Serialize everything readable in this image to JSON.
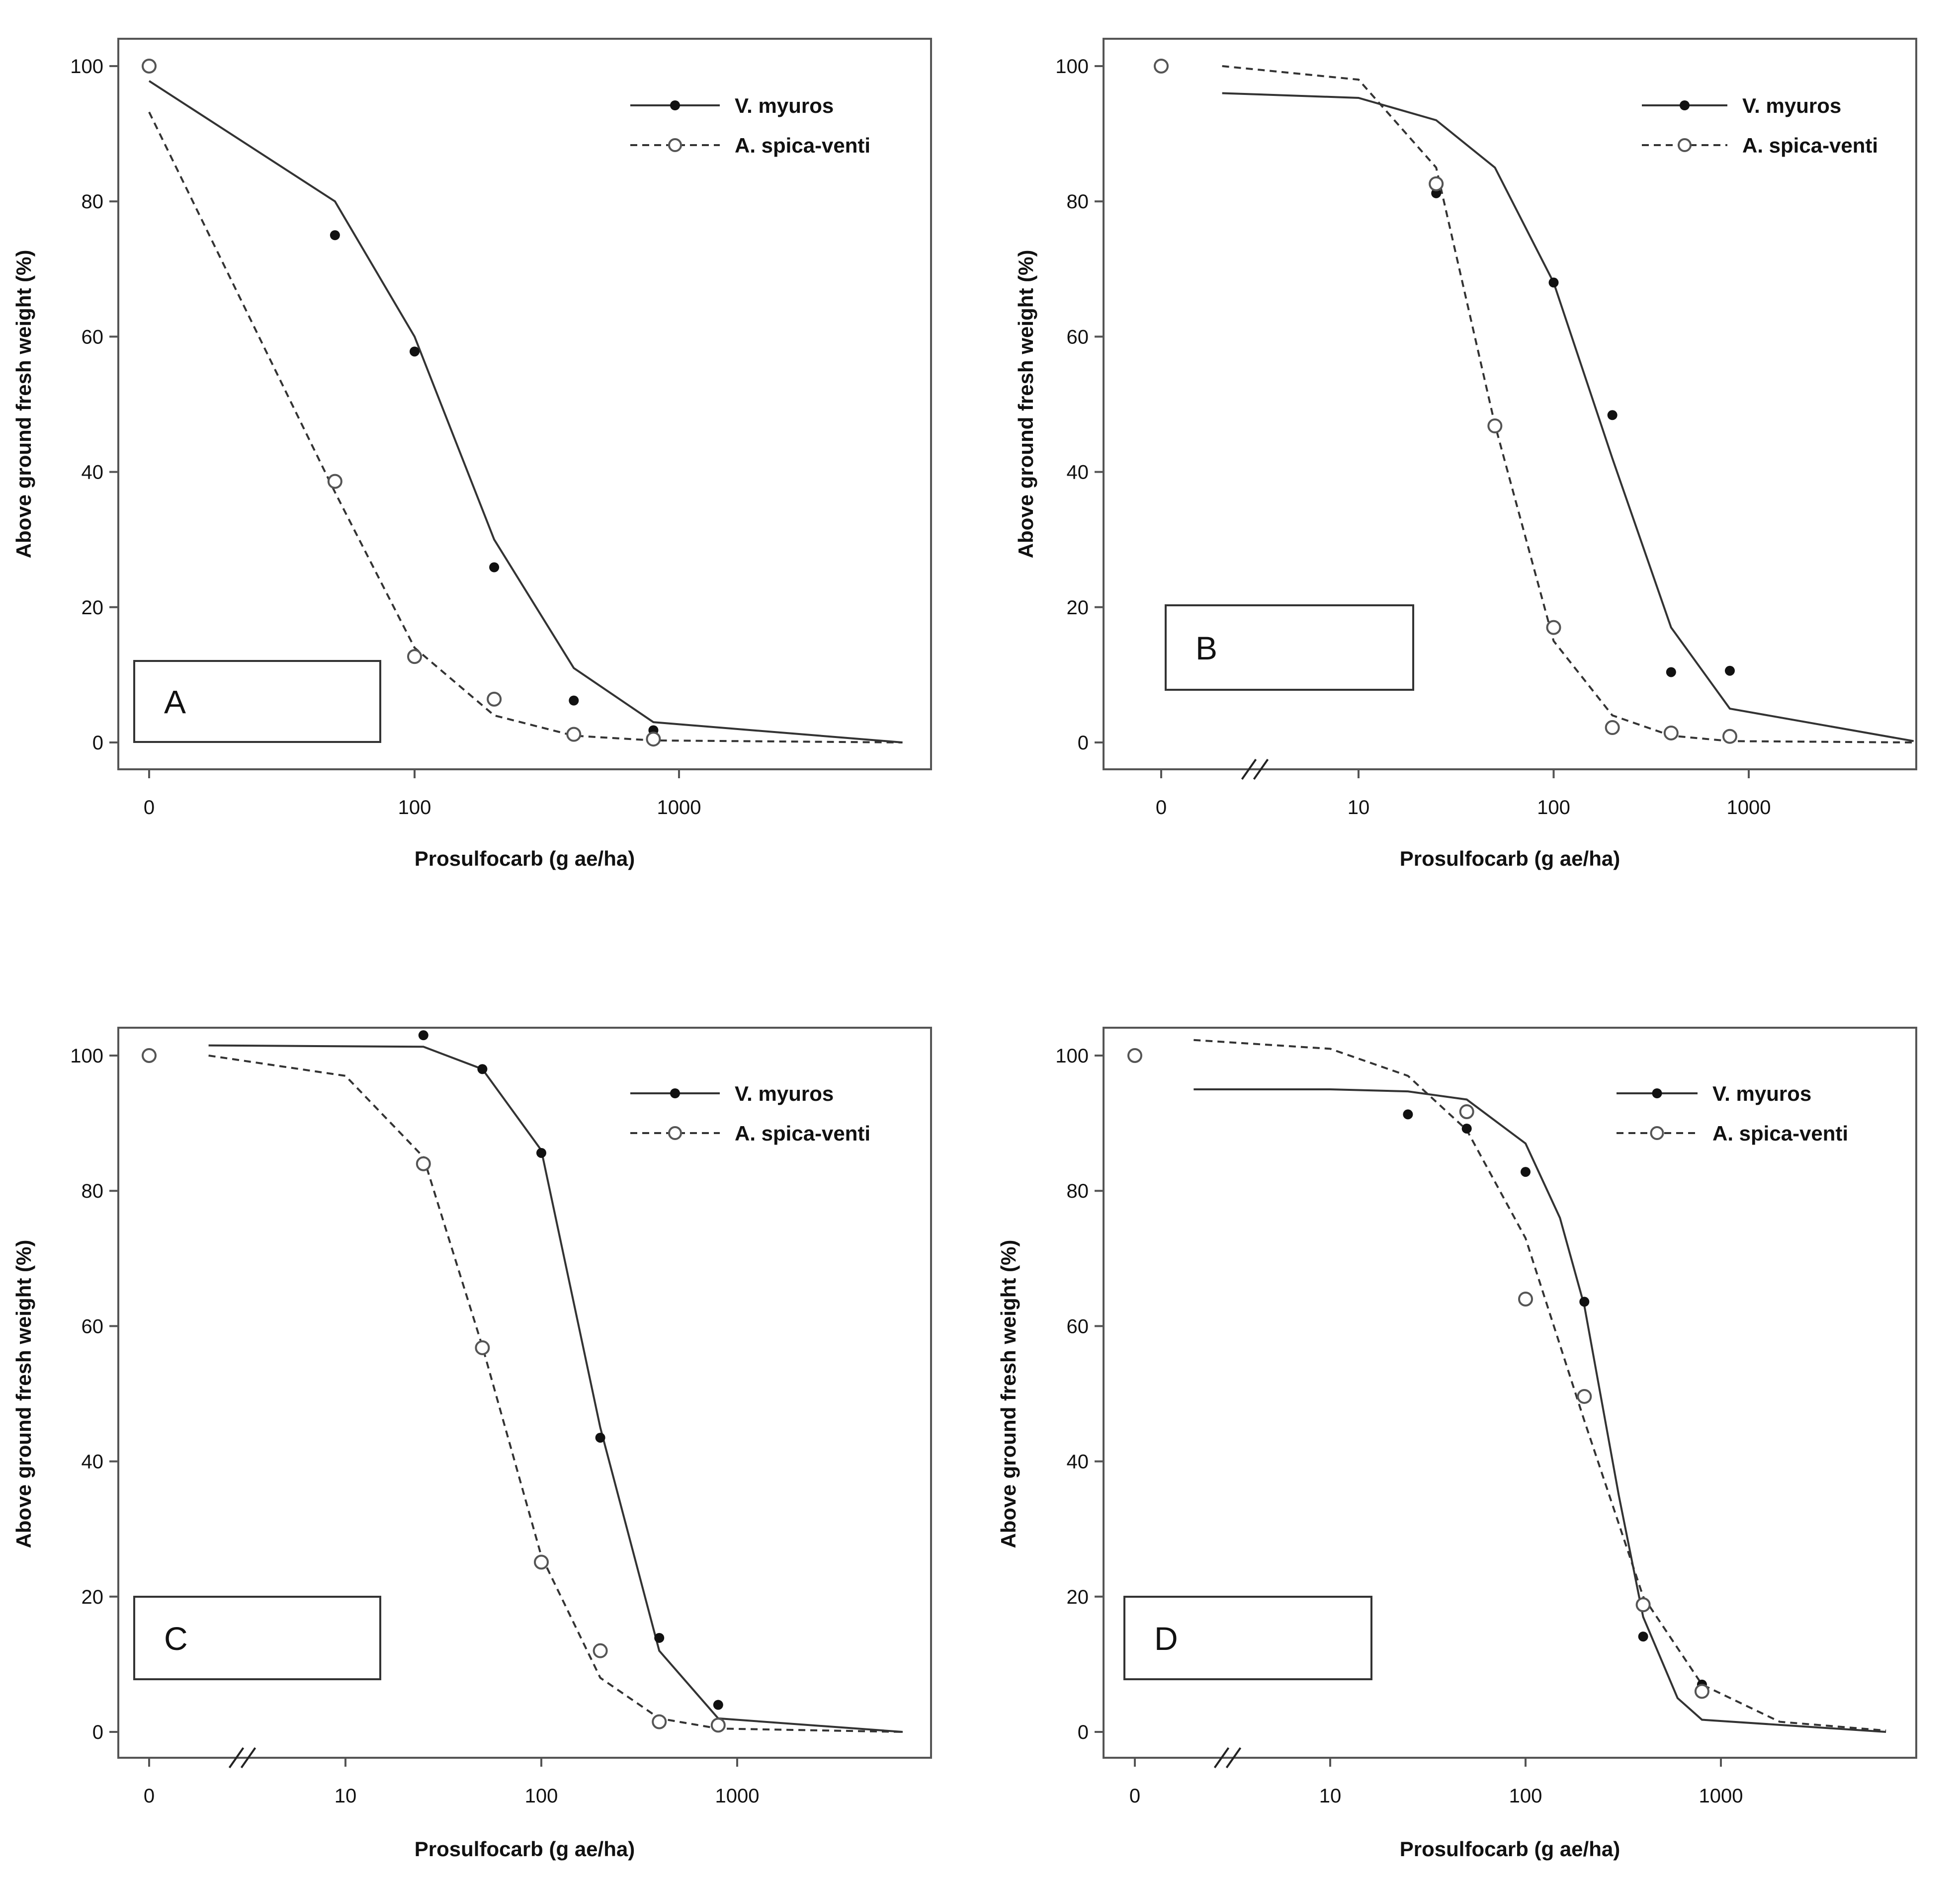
{
  "figure": {
    "colors": {
      "line": "#333333",
      "frame": "#555555",
      "point_fill": "#111111",
      "open_point": "#555555",
      "background": "#ffffff"
    }
  },
  "chart_data": [
    {
      "type": "line",
      "panel": "A",
      "xlabel": "Prosulfocarb (g ae/ha)",
      "ylabel": "Above ground fresh weight (%)",
      "xscale": "log",
      "xticks": [
        "0",
        "100",
        "1000"
      ],
      "yticks": [
        "0",
        "20",
        "40",
        "60",
        "80",
        "100"
      ],
      "ylim": [
        0,
        100
      ],
      "legend_position": "top-right",
      "series": [
        {
          "name": "V. myuros",
          "marker": "filled-circle",
          "line": "solid",
          "points": [
            {
              "x": 0,
              "y": 100
            },
            {
              "x": 50,
              "y": 75
            },
            {
              "x": 100,
              "y": 57.8
            },
            {
              "x": 200,
              "y": 25.9
            },
            {
              "x": 400,
              "y": 6.2
            },
            {
              "x": 800,
              "y": 1.8
            }
          ],
          "curve": [
            {
              "x": 0,
              "y": 97.8
            },
            {
              "x": 50,
              "y": 80
            },
            {
              "x": 100,
              "y": 60
            },
            {
              "x": 200,
              "y": 30
            },
            {
              "x": 400,
              "y": 11
            },
            {
              "x": 800,
              "y": 3
            },
            {
              "x": 7000,
              "y": 0
            }
          ]
        },
        {
          "name": "A. spica-venti",
          "marker": "open-circle",
          "line": "dashed",
          "points": [
            {
              "x": 0,
              "y": 100
            },
            {
              "x": 50,
              "y": 38.6
            },
            {
              "x": 100,
              "y": 12.7
            },
            {
              "x": 200,
              "y": 6.4
            },
            {
              "x": 400,
              "y": 1.2
            },
            {
              "x": 800,
              "y": 0.5
            }
          ],
          "curve": [
            {
              "x": 0,
              "y": 93.2
            },
            {
              "x": 50,
              "y": 37
            },
            {
              "x": 100,
              "y": 14
            },
            {
              "x": 200,
              "y": 4
            },
            {
              "x": 400,
              "y": 1
            },
            {
              "x": 800,
              "y": 0.3
            },
            {
              "x": 7000,
              "y": 0
            }
          ]
        }
      ]
    },
    {
      "type": "line",
      "panel": "B",
      "xlabel": "Prosulfocarb (g ae/ha)",
      "ylabel": "Above ground fresh weight (%)",
      "xscale": "log",
      "axis_break": true,
      "xticks": [
        "0",
        "10",
        "100",
        "1000"
      ],
      "yticks": [
        "0",
        "20",
        "40",
        "60",
        "80",
        "100"
      ],
      "ylim": [
        0,
        100
      ],
      "legend_position": "top-right",
      "series": [
        {
          "name": "V. myuros",
          "marker": "filled-circle",
          "line": "solid",
          "points": [
            {
              "x": 0,
              "y": 100
            },
            {
              "x": 25,
              "y": 81.2
            },
            {
              "x": 100,
              "y": 68
            },
            {
              "x": 200,
              "y": 48.4
            },
            {
              "x": 400,
              "y": 10.4
            },
            {
              "x": 800,
              "y": 10.6
            }
          ],
          "curve": [
            {
              "x": 2,
              "y": 96
            },
            {
              "x": 10,
              "y": 95.3
            },
            {
              "x": 25,
              "y": 92
            },
            {
              "x": 50,
              "y": 85
            },
            {
              "x": 100,
              "y": 68
            },
            {
              "x": 200,
              "y": 42
            },
            {
              "x": 400,
              "y": 17
            },
            {
              "x": 800,
              "y": 5
            },
            {
              "x": 7000,
              "y": 0.2
            }
          ]
        },
        {
          "name": "A. spica-venti",
          "marker": "open-circle",
          "line": "dashed",
          "points": [
            {
              "x": 0,
              "y": 100
            },
            {
              "x": 25,
              "y": 82.6
            },
            {
              "x": 50,
              "y": 46.8
            },
            {
              "x": 100,
              "y": 17
            },
            {
              "x": 200,
              "y": 2.2
            },
            {
              "x": 400,
              "y": 1.4
            },
            {
              "x": 800,
              "y": 0.9
            }
          ],
          "curve": [
            {
              "x": 2,
              "y": 100
            },
            {
              "x": 10,
              "y": 98
            },
            {
              "x": 25,
              "y": 85
            },
            {
              "x": 50,
              "y": 47
            },
            {
              "x": 100,
              "y": 15
            },
            {
              "x": 200,
              "y": 4
            },
            {
              "x": 400,
              "y": 1
            },
            {
              "x": 800,
              "y": 0.2
            },
            {
              "x": 7000,
              "y": 0
            }
          ]
        }
      ]
    },
    {
      "type": "line",
      "panel": "C",
      "xlabel": "Prosulfocarb (g ae/ha)",
      "ylabel": "Above ground fresh weight (%)",
      "xscale": "log",
      "axis_break": true,
      "xticks": [
        "0",
        "10",
        "100",
        "1000"
      ],
      "yticks": [
        "0",
        "20",
        "40",
        "60",
        "80",
        "100"
      ],
      "ylim": [
        0,
        100
      ],
      "legend_position": "top-right",
      "series": [
        {
          "name": "V. myuros",
          "marker": "filled-circle",
          "line": "solid",
          "points": [
            {
              "x": 0,
              "y": 100
            },
            {
              "x": 25,
              "y": 103
            },
            {
              "x": 50,
              "y": 98
            },
            {
              "x": 100,
              "y": 85.6
            },
            {
              "x": 200,
              "y": 43.5
            },
            {
              "x": 400,
              "y": 13.9
            },
            {
              "x": 800,
              "y": 4
            }
          ],
          "curve": [
            {
              "x": 2,
              "y": 101.5
            },
            {
              "x": 25,
              "y": 101.3
            },
            {
              "x": 50,
              "y": 98
            },
            {
              "x": 100,
              "y": 86
            },
            {
              "x": 200,
              "y": 45
            },
            {
              "x": 400,
              "y": 12
            },
            {
              "x": 800,
              "y": 2
            },
            {
              "x": 7000,
              "y": 0
            }
          ]
        },
        {
          "name": "A. spica-venti",
          "marker": "open-circle",
          "line": "dashed",
          "points": [
            {
              "x": 0,
              "y": 100
            },
            {
              "x": 25,
              "y": 84
            },
            {
              "x": 50,
              "y": 56.8
            },
            {
              "x": 100,
              "y": 25.1
            },
            {
              "x": 200,
              "y": 12
            },
            {
              "x": 400,
              "y": 1.5
            },
            {
              "x": 800,
              "y": 1
            }
          ],
          "curve": [
            {
              "x": 2,
              "y": 100
            },
            {
              "x": 10,
              "y": 97
            },
            {
              "x": 25,
              "y": 85
            },
            {
              "x": 50,
              "y": 57
            },
            {
              "x": 100,
              "y": 26
            },
            {
              "x": 200,
              "y": 8
            },
            {
              "x": 400,
              "y": 2
            },
            {
              "x": 800,
              "y": 0.5
            },
            {
              "x": 7000,
              "y": 0
            }
          ]
        }
      ]
    },
    {
      "type": "line",
      "panel": "D",
      "xlabel": "Prosulfocarb (g ae/ha)",
      "ylabel": "Above ground fresh weight (%)",
      "xscale": "log",
      "axis_break": true,
      "xticks": [
        "0",
        "10",
        "100",
        "1000"
      ],
      "yticks": [
        "0",
        "20",
        "40",
        "60",
        "80",
        "100"
      ],
      "ylim": [
        0,
        100
      ],
      "legend_position": "top-right",
      "series": [
        {
          "name": "V. myuros",
          "marker": "filled-circle",
          "line": "solid",
          "points": [
            {
              "x": 0,
              "y": 100
            },
            {
              "x": 25,
              "y": 91.3
            },
            {
              "x": 50,
              "y": 89.2
            },
            {
              "x": 100,
              "y": 82.8
            },
            {
              "x": 200,
              "y": 63.6
            },
            {
              "x": 400,
              "y": 14.1
            },
            {
              "x": 800,
              "y": 7
            }
          ],
          "curve": [
            {
              "x": 2,
              "y": 95
            },
            {
              "x": 10,
              "y": 95
            },
            {
              "x": 25,
              "y": 94.7
            },
            {
              "x": 50,
              "y": 93.5
            },
            {
              "x": 100,
              "y": 87
            },
            {
              "x": 150,
              "y": 76
            },
            {
              "x": 200,
              "y": 63
            },
            {
              "x": 300,
              "y": 35
            },
            {
              "x": 400,
              "y": 17
            },
            {
              "x": 600,
              "y": 5
            },
            {
              "x": 800,
              "y": 1.8
            },
            {
              "x": 7000,
              "y": 0
            }
          ]
        },
        {
          "name": "A. spica-venti",
          "marker": "open-circle",
          "line": "dashed",
          "points": [
            {
              "x": 0,
              "y": 100
            },
            {
              "x": 50,
              "y": 91.7
            },
            {
              "x": 100,
              "y": 64
            },
            {
              "x": 200,
              "y": 49.6
            },
            {
              "x": 400,
              "y": 18.8
            },
            {
              "x": 800,
              "y": 6
            }
          ],
          "curve": [
            {
              "x": 2,
              "y": 102.3
            },
            {
              "x": 10,
              "y": 101
            },
            {
              "x": 25,
              "y": 97
            },
            {
              "x": 50,
              "y": 89
            },
            {
              "x": 100,
              "y": 73
            },
            {
              "x": 200,
              "y": 46
            },
            {
              "x": 400,
              "y": 20
            },
            {
              "x": 800,
              "y": 7
            },
            {
              "x": 2000,
              "y": 1.5
            },
            {
              "x": 7000,
              "y": 0.2
            }
          ]
        }
      ]
    }
  ]
}
